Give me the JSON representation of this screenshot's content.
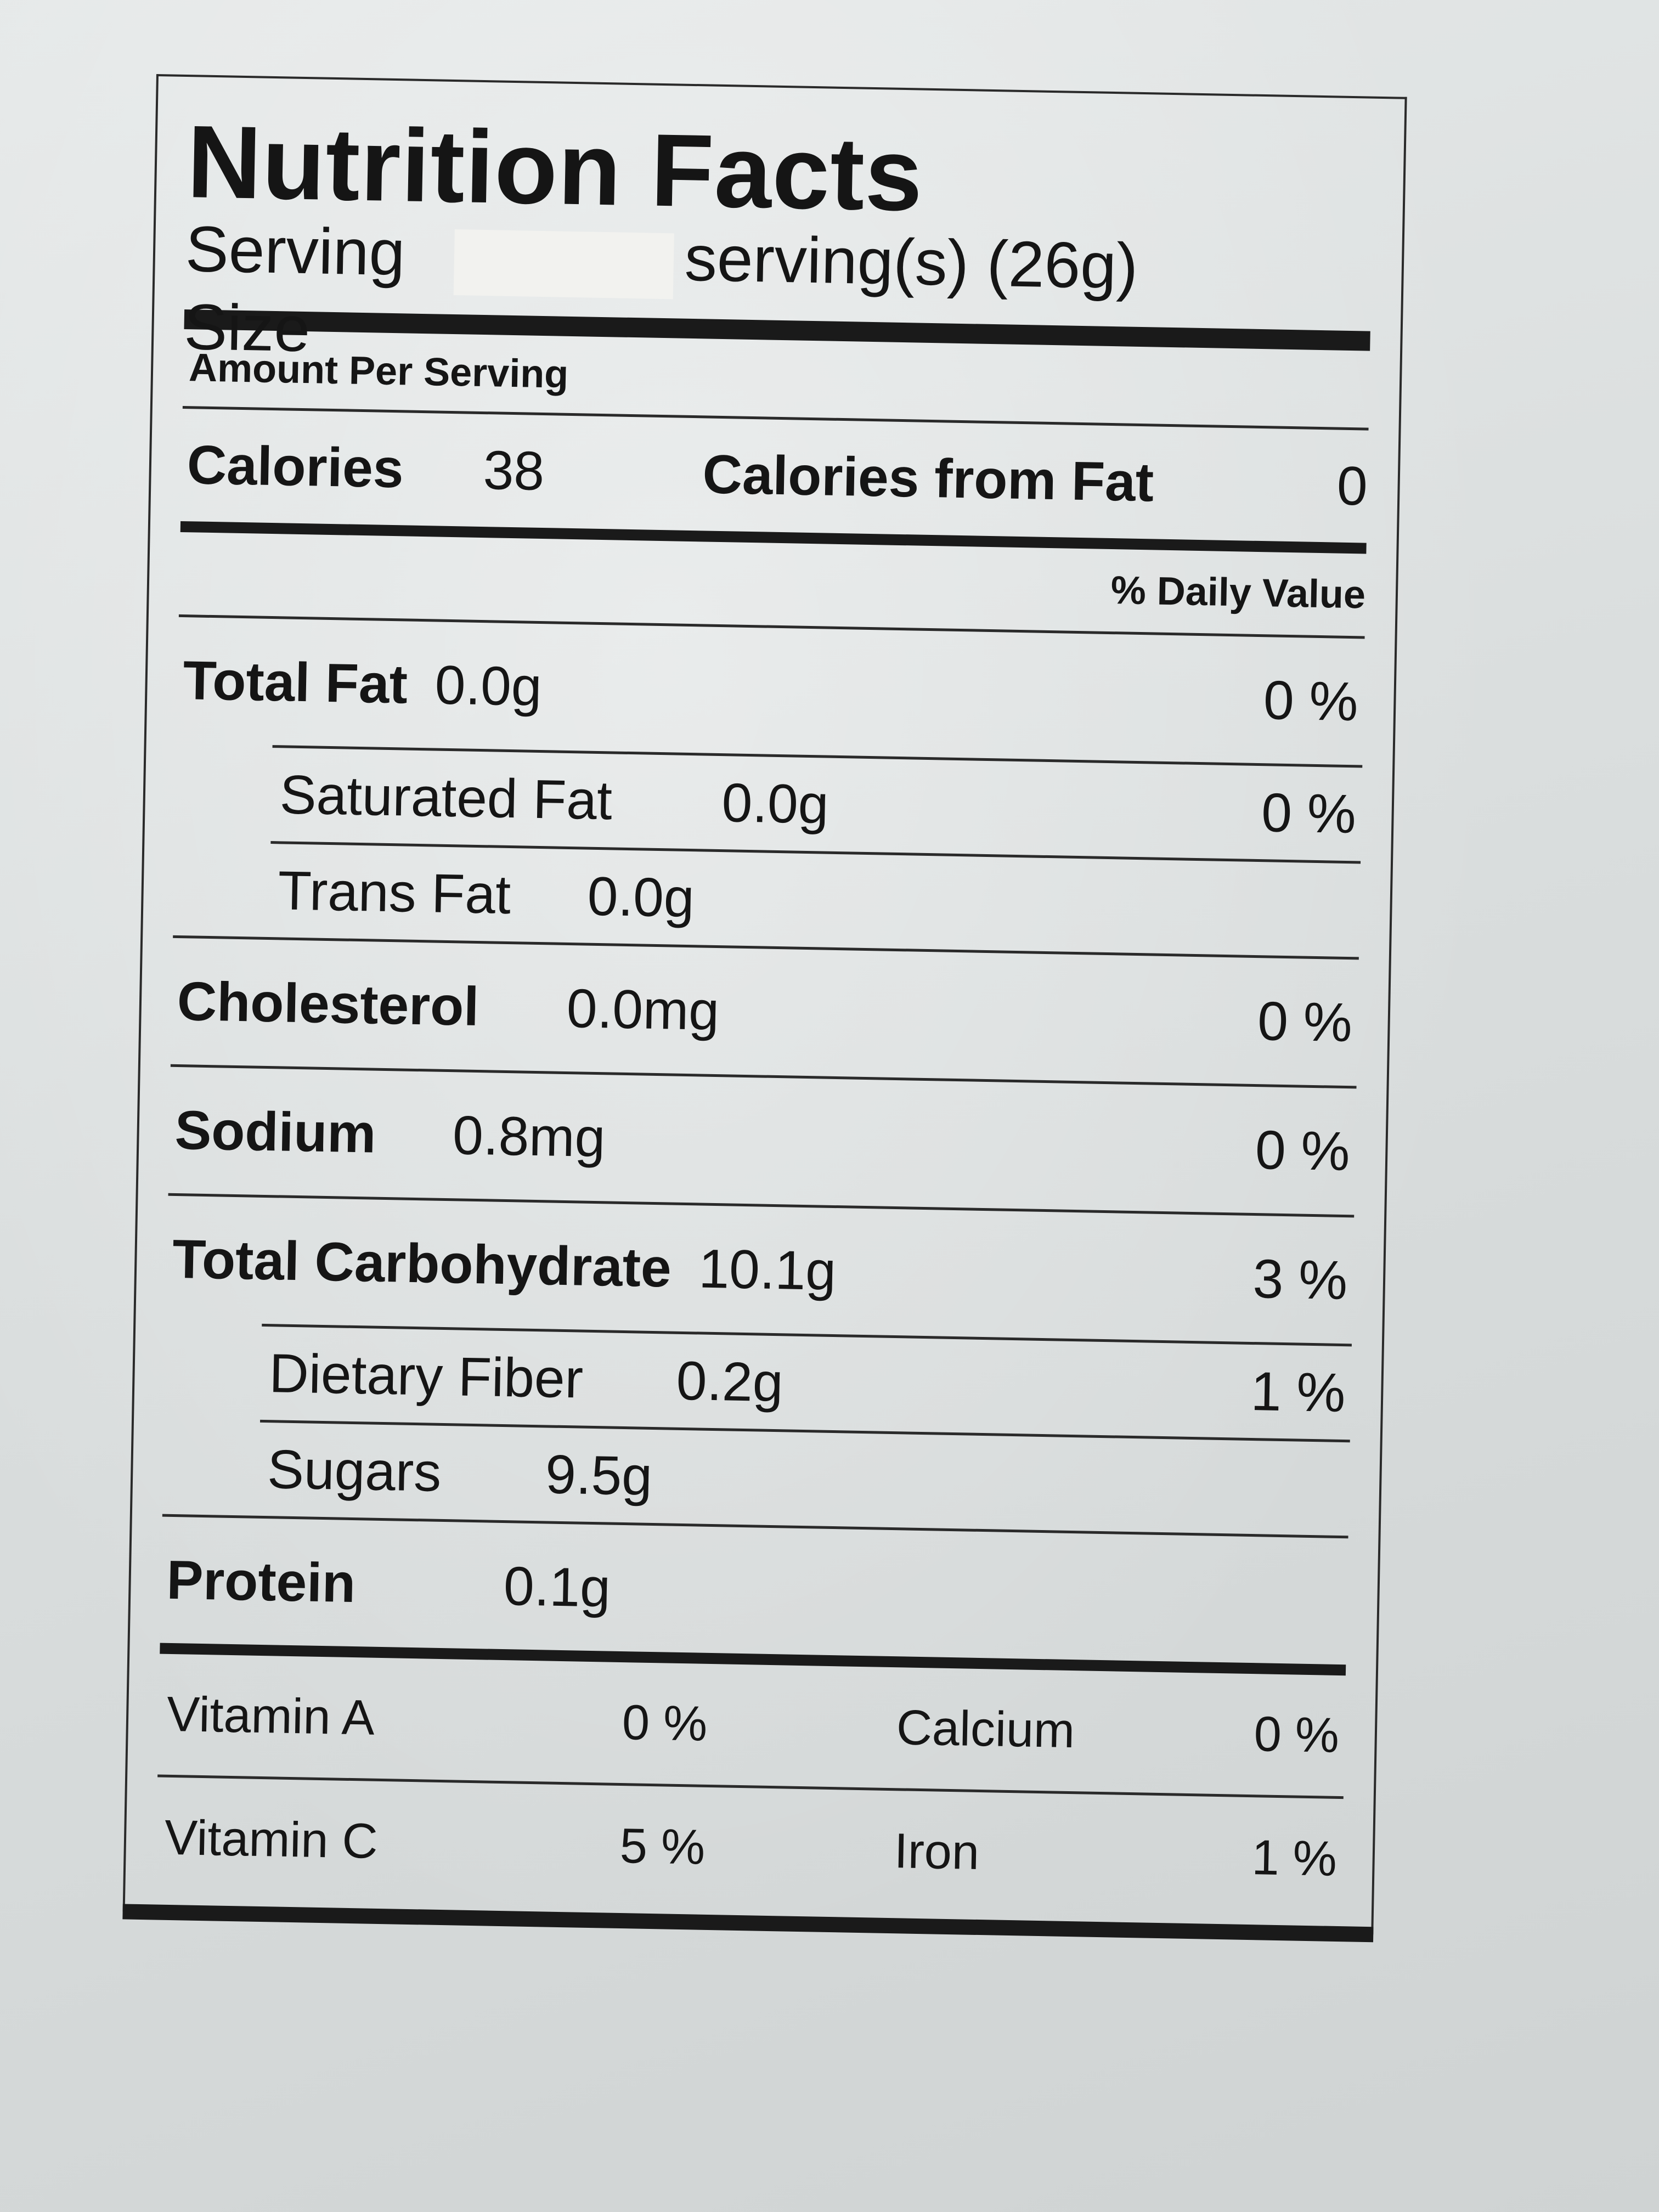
{
  "label": {
    "title": "Nutrition Facts",
    "serving_size_label": "Serving Size",
    "serving_size_value": "serving(s) (26g)",
    "amount_per_serving": "Amount Per Serving",
    "calories_label": "Calories",
    "calories_value": "38",
    "calories_from_fat_label": "Calories from Fat",
    "calories_from_fat_value": "0",
    "daily_value_header": "% Daily Value",
    "nutrients": {
      "total_fat": {
        "name": "Total Fat",
        "amount": "0.0g",
        "dv": "0 %"
      },
      "saturated_fat": {
        "name": "Saturated Fat",
        "amount": "0.0g",
        "dv": "0 %"
      },
      "trans_fat": {
        "name": "Trans Fat",
        "amount": "0.0g"
      },
      "cholesterol": {
        "name": "Cholesterol",
        "amount": "0.0mg",
        "dv": "0 %"
      },
      "sodium": {
        "name": "Sodium",
        "amount": "0.8mg",
        "dv": "0 %"
      },
      "total_carbohydrate": {
        "name": "Total Carbohydrate",
        "amount": "10.1g",
        "dv": "3 %"
      },
      "dietary_fiber": {
        "name": "Dietary Fiber",
        "amount": "0.2g",
        "dv": "1 %"
      },
      "sugars": {
        "name": "Sugars",
        "amount": "9.5g"
      },
      "protein": {
        "name": "Protein",
        "amount": "0.1g"
      }
    },
    "vitamins": {
      "vitamin_a": {
        "name": "Vitamin A",
        "dv": "0 %"
      },
      "calcium": {
        "name": "Calcium",
        "dv": "0 %"
      },
      "vitamin_c": {
        "name": "Vitamin C",
        "dv": "5 %"
      },
      "iron": {
        "name": "Iron",
        "dv": "1 %"
      }
    }
  }
}
